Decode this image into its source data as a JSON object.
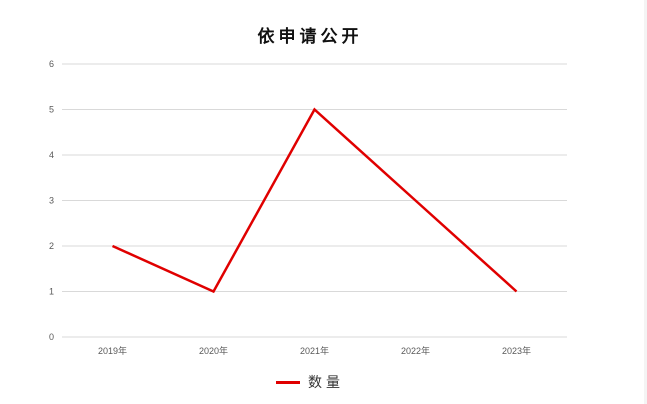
{
  "chart_data": {
    "type": "line",
    "title": "依申请公开",
    "categories": [
      "2019年",
      "2020年",
      "2021年",
      "2022年",
      "2023年"
    ],
    "series": [
      {
        "name": "数量",
        "values": [
          2,
          1,
          5,
          3,
          1
        ],
        "color": "#e00000"
      }
    ],
    "yticks": [
      "0",
      "1",
      "2",
      "3",
      "4",
      "5",
      "6"
    ],
    "ylim": [
      0,
      6
    ],
    "xlabel": "",
    "ylabel": "",
    "grid": true,
    "legend": "bottom"
  }
}
